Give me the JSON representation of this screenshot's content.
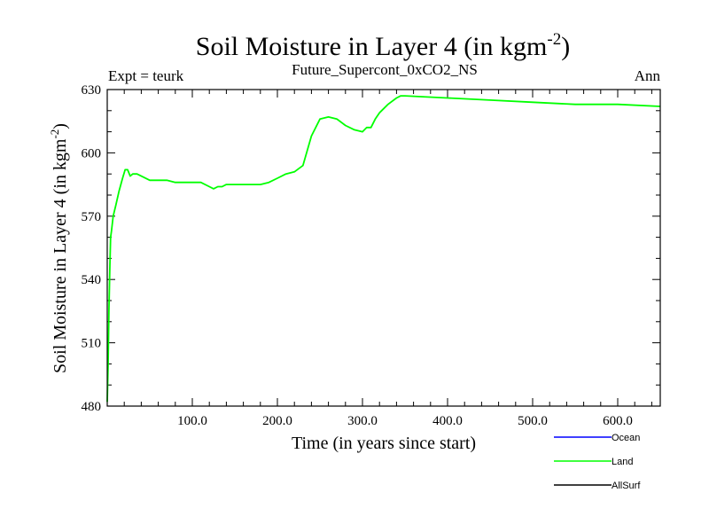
{
  "chart_data": {
    "type": "line",
    "title": "Soil Moisture in Layer 4 (in kgm",
    "title_sup": "-2",
    "title_close": ")",
    "subtitle": "Future_Supercont_0xCO2_NS",
    "left_label": "Expt = teurk",
    "right_label": "Ann",
    "xlabel": "Time (in years since start)",
    "ylabel": "Soil Moisture in Layer 4 (in kgm",
    "ylabel_sup": "-2",
    "ylabel_close": ")",
    "xlim": [
      0,
      650
    ],
    "ylim": [
      480,
      630
    ],
    "xticks": [
      100,
      200,
      300,
      400,
      500,
      600
    ],
    "xtick_labels": [
      "100.0",
      "200.0",
      "300.0",
      "400.0",
      "500.0",
      "600.0"
    ],
    "yticks": [
      480,
      510,
      540,
      570,
      600,
      630
    ],
    "ytick_labels": [
      "480",
      "510",
      "540",
      "570",
      "600",
      "630"
    ],
    "grid": false,
    "legend_position": "bottom-right",
    "series": [
      {
        "name": "Ocean",
        "color": "#0000ff",
        "x": [],
        "y": []
      },
      {
        "name": "Land",
        "color": "#00ff00",
        "x": [
          0,
          1,
          2,
          3,
          4,
          5,
          7,
          10,
          14,
          18,
          21,
          24,
          27,
          30,
          35,
          40,
          50,
          60,
          70,
          80,
          90,
          100,
          110,
          120,
          125,
          130,
          135,
          140,
          150,
          160,
          170,
          180,
          190,
          200,
          210,
          220,
          230,
          240,
          250,
          260,
          270,
          280,
          290,
          300,
          305,
          310,
          315,
          320,
          330,
          340,
          345,
          350,
          400,
          450,
          500,
          550,
          600,
          650
        ],
        "y": [
          482,
          500,
          525,
          545,
          560,
          563,
          570,
          575,
          582,
          588,
          592,
          592,
          589,
          590,
          590,
          589,
          587,
          587,
          587,
          586,
          586,
          586,
          586,
          584,
          583,
          584,
          584,
          585,
          585,
          585,
          585,
          585,
          586,
          588,
          590,
          591,
          594,
          608,
          616,
          617,
          616,
          613,
          611,
          610,
          612,
          612,
          616,
          619,
          623,
          626,
          627,
          627,
          626,
          625,
          624,
          623,
          623,
          622
        ]
      },
      {
        "name": "AllSurf",
        "color": "#000000",
        "x": [],
        "y": []
      }
    ]
  }
}
